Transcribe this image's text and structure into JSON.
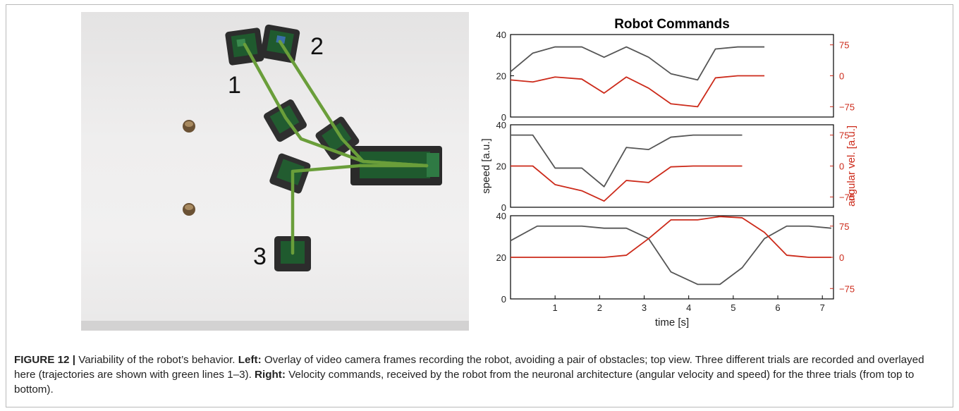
{
  "figure": {
    "photo": {
      "trajectory_labels": [
        "1",
        "2",
        "3"
      ],
      "colors": {
        "trajectory": "#6a9e3a",
        "robot_body": "#2c2c2c",
        "robot_board": "#1f5a2e",
        "obstacle": "#6b5235"
      }
    },
    "chart_data": [
      {
        "type": "line",
        "title": "Robot Commands",
        "x": [
          0,
          0.5,
          1.0,
          1.6,
          2.1,
          2.6,
          3.1,
          3.6,
          4.2,
          4.6,
          5.1,
          5.7
        ],
        "series": [
          {
            "axis": "left",
            "color": "#555555",
            "values": [
              22,
              31,
              34,
              34,
              29,
              34,
              29,
              21,
              18,
              33,
              34,
              34
            ]
          },
          {
            "axis": "right",
            "color": "#cc2a1a",
            "values": [
              -10,
              -15,
              -3,
              -8,
              -42,
              -3,
              -30,
              -68,
              -75,
              -5,
              0,
              0
            ]
          }
        ],
        "ylim_left": [
          0,
          40
        ],
        "yticks_left": [
          "0",
          "20",
          "40"
        ],
        "ylim_right": [
          -100,
          100
        ],
        "yticks_right": [
          "75",
          "0",
          "−75"
        ]
      },
      {
        "type": "line",
        "x": [
          0,
          0.5,
          1.0,
          1.6,
          2.1,
          2.6,
          3.1,
          3.6,
          4.1,
          4.6,
          5.2
        ],
        "series": [
          {
            "axis": "left",
            "color": "#555555",
            "values": [
              35,
              35,
              19,
              19,
              10,
              29,
              28,
              34,
              35,
              35,
              35
            ]
          },
          {
            "axis": "right",
            "color": "#cc2a1a",
            "values": [
              0,
              0,
              -45,
              -60,
              -85,
              -35,
              -40,
              -2,
              0,
              0,
              0
            ]
          }
        ],
        "ylim_left": [
          0,
          40
        ],
        "yticks_left": [
          "0",
          "20",
          "40"
        ],
        "ylim_right": [
          -100,
          100
        ],
        "yticks_right": [
          "75",
          "0",
          "−75"
        ],
        "ylabel_left": "speed [a.u.]",
        "ylabel_right": "angular vel. [a.u.]"
      },
      {
        "type": "line",
        "x": [
          0,
          0.6,
          1.1,
          1.6,
          2.1,
          2.6,
          3.1,
          3.6,
          4.2,
          4.7,
          5.2,
          5.7,
          6.2,
          6.7,
          7.2
        ],
        "series": [
          {
            "axis": "left",
            "color": "#555555",
            "values": [
              28,
              35,
              35,
              35,
              34,
              34,
              29,
              13,
              7,
              7,
              15,
              29,
              35,
              35,
              34
            ]
          },
          {
            "axis": "right",
            "color": "#cc2a1a",
            "values": [
              0,
              0,
              0,
              0,
              0,
              5,
              45,
              90,
              90,
              98,
              95,
              60,
              5,
              0,
              0
            ]
          }
        ],
        "ylim_left": [
          0,
          40
        ],
        "yticks_left": [
          "0",
          "20",
          "40"
        ],
        "ylim_right": [
          -100,
          100
        ],
        "yticks_right": [
          "75",
          "0",
          "−75"
        ],
        "xlabel": "time [s]",
        "xticks": [
          "1",
          "2",
          "3",
          "4",
          "5",
          "6",
          "7"
        ],
        "xlim": [
          0,
          7.25
        ]
      }
    ],
    "caption": {
      "label": "FIGURE 12 |",
      "text1": " Variability of the robot’s behavior. ",
      "left_label": "Left:",
      "text2": " Overlay of video camera frames recording the robot, avoiding a pair of obstacles; top view. Three different trials are recorded and overlayed here (trajectories are shown with green lines 1–3). ",
      "right_label": "Right:",
      "text3": " Velocity commands, received by the robot from the neuronal architecture (angular velocity and speed) for the three trials (from top to bottom)."
    }
  }
}
